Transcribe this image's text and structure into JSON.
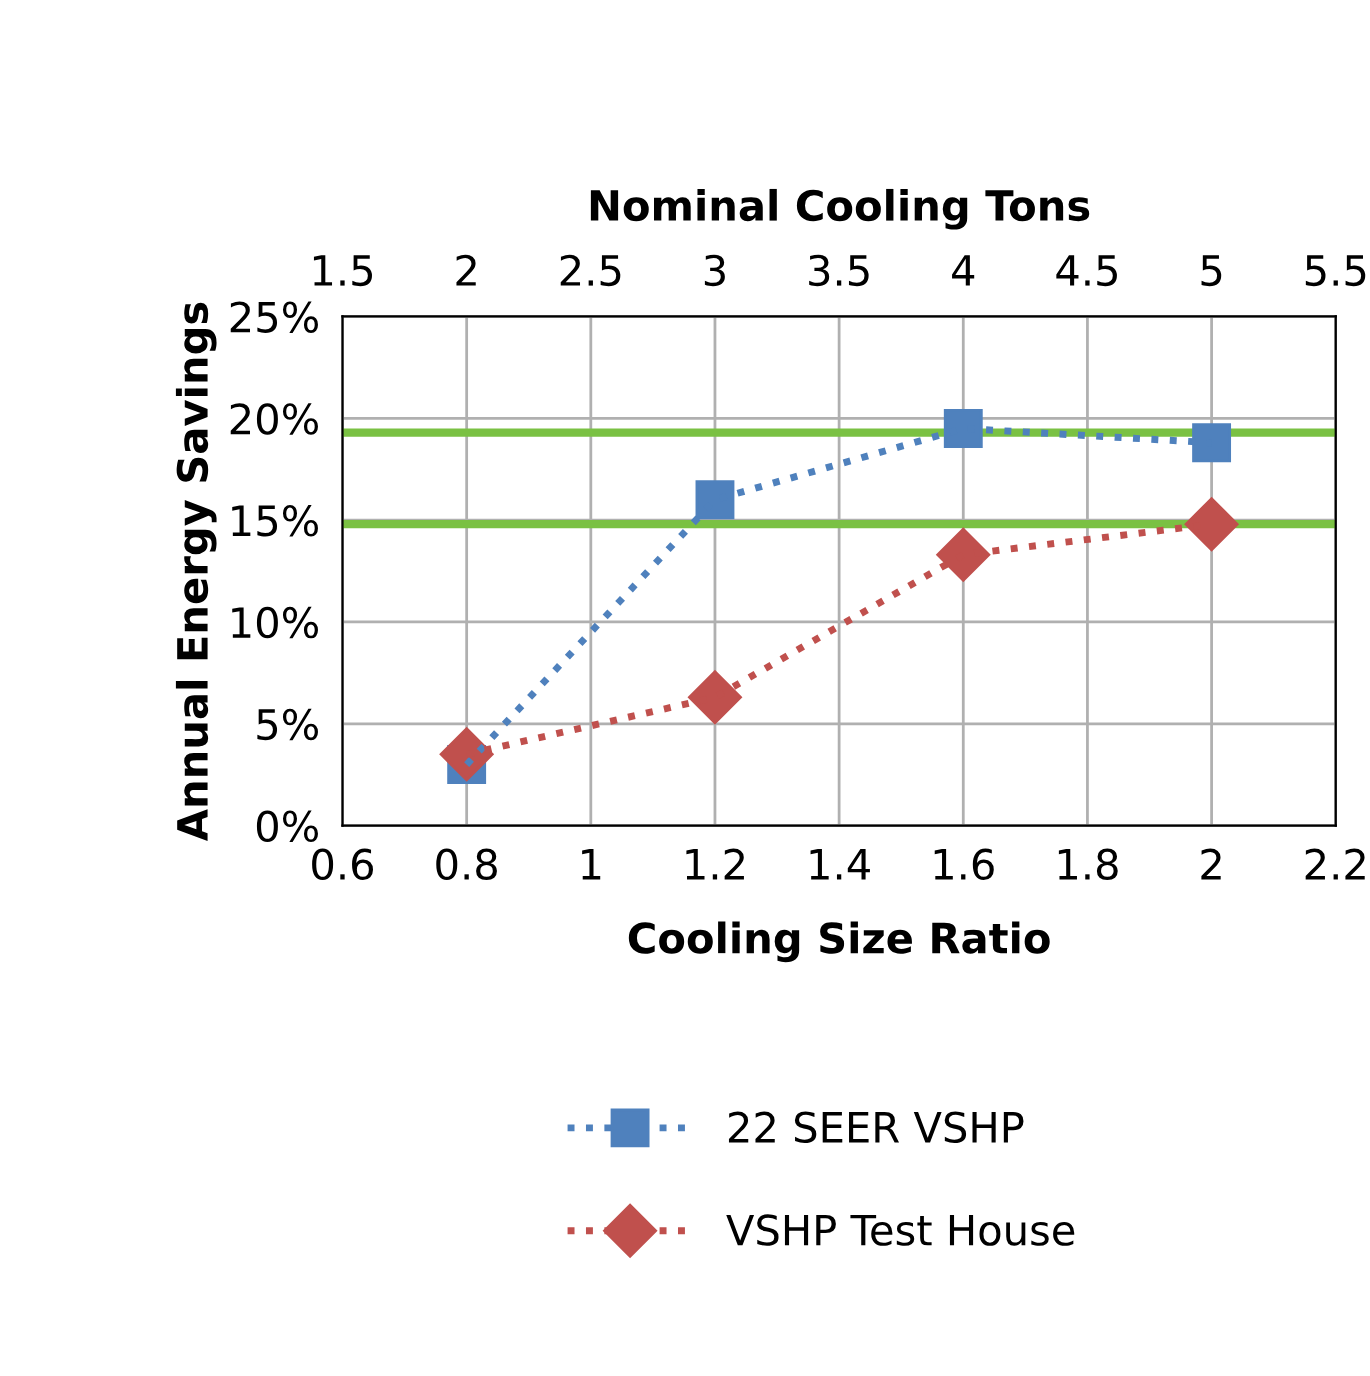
{
  "chart_data": {
    "type": "line",
    "xlabel": "Cooling Size Ratio",
    "ylabel": "Annual Energy Savings",
    "x2label": "Nominal Cooling Tons",
    "xlim": [
      0.6,
      2.2
    ],
    "xticks": [
      0.6,
      0.8,
      1,
      1.2,
      1.4,
      1.6,
      1.8,
      2,
      2.2
    ],
    "x2lim": [
      1.5,
      5.5
    ],
    "x2ticks": [
      1.5,
      2,
      2.5,
      3,
      3.5,
      4,
      4.5,
      5,
      5.5
    ],
    "ylim": [
      0,
      25
    ],
    "yticks": [
      {
        "value": 0,
        "label": "0%"
      },
      {
        "value": 5,
        "label": "5%"
      },
      {
        "value": 10,
        "label": "10%"
      },
      {
        "value": 15,
        "label": "15%"
      },
      {
        "value": 20,
        "label": "20%"
      },
      {
        "value": 25,
        "label": "25%"
      }
    ],
    "grid": true,
    "legend": "bottom",
    "line_style": "dotted",
    "series": [
      {
        "name": "22 SEER VSHP",
        "color": "#4f81bd",
        "marker": "square",
        "x": [
          0.8,
          1.2,
          1.6,
          2.0
        ],
        "values": [
          3,
          16,
          19.5,
          18.8
        ]
      },
      {
        "name": "VSHP Test House",
        "color": "#c0504d",
        "marker": "diamond",
        "x": [
          0.8,
          1.2,
          1.6,
          2.0
        ],
        "values": [
          3.5,
          6.3,
          13.3,
          14.8
        ]
      }
    ],
    "ref_lines": [
      {
        "axis": "y",
        "value": 19.3,
        "color": "#7ac143"
      },
      {
        "axis": "y",
        "value": 14.8,
        "color": "#7ac143"
      }
    ]
  }
}
